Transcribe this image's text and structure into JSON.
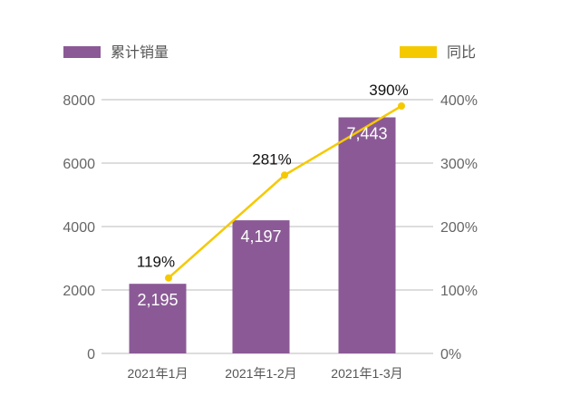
{
  "chart_data": {
    "type": "bar+line",
    "categories": [
      "2021年1月",
      "2021年1-2月",
      "2021年1-3月"
    ],
    "series": [
      {
        "name": "累计销量",
        "type": "bar",
        "axis": "left",
        "values": [
          2195,
          4197,
          7443
        ],
        "labels": [
          "2,195",
          "4,197",
          "7,443"
        ],
        "color": "#8b5a96"
      },
      {
        "name": "同比",
        "type": "line",
        "axis": "right",
        "values": [
          119,
          281,
          390
        ],
        "labels": [
          "119%",
          "281%",
          "390%"
        ],
        "color": "#f5c900"
      }
    ],
    "left_axis": {
      "ylim": [
        0,
        8000
      ],
      "ticks": [
        "0",
        "2000",
        "4000",
        "6000",
        "8000"
      ]
    },
    "right_axis": {
      "ylim": [
        0,
        400
      ],
      "ticks": [
        "0%",
        "100%",
        "200%",
        "300%",
        "400%"
      ]
    },
    "grid": true,
    "legend": "top"
  }
}
